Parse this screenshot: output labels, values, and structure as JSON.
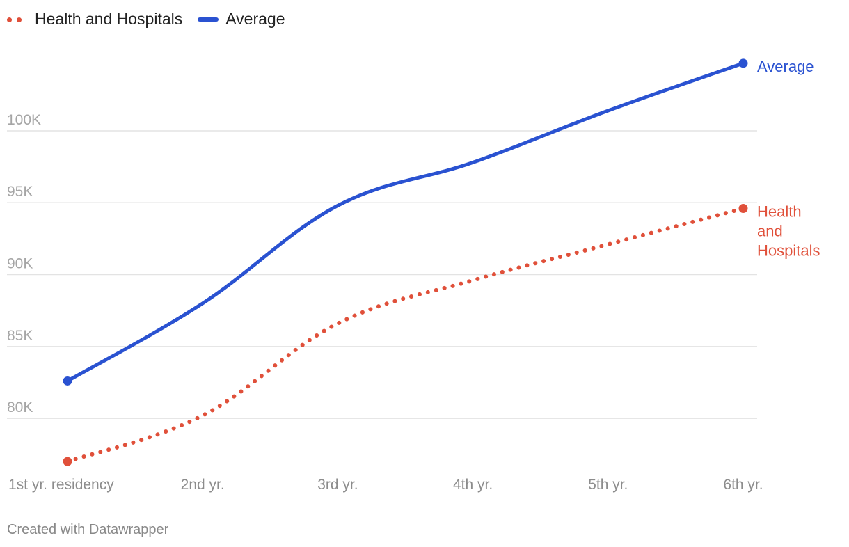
{
  "legend": {
    "series_0": "Health and Hospitals",
    "series_1": "Average"
  },
  "footer": {
    "credit": "Created with Datawrapper"
  },
  "chart_data": {
    "type": "line",
    "title": "",
    "xlabel": "",
    "ylabel": "",
    "categories": [
      "1st yr. residency",
      "2nd yr.",
      "3rd yr.",
      "4th yr.",
      "5th yr.",
      "6th yr."
    ],
    "ylim": [
      75700,
      109000
    ],
    "yticks": [
      80000,
      85000,
      90000,
      95000,
      100000
    ],
    "ytick_labels": [
      "80K",
      "85K",
      "90K",
      "95K",
      "100K"
    ],
    "grid": true,
    "legend_position": "top-left",
    "series": [
      {
        "name": "Health and Hospitals",
        "values": [
          77000,
          80200,
          86600,
          89600,
          92100,
          94600
        ],
        "color": "#e0503a",
        "style": "dotted",
        "end_label": "Health and Hospitals"
      },
      {
        "name": "Average",
        "values": [
          82600,
          88000,
          94800,
          97800,
          101400,
          104700
        ],
        "color": "#2a52d1",
        "style": "solid",
        "end_label": "Average"
      }
    ]
  }
}
